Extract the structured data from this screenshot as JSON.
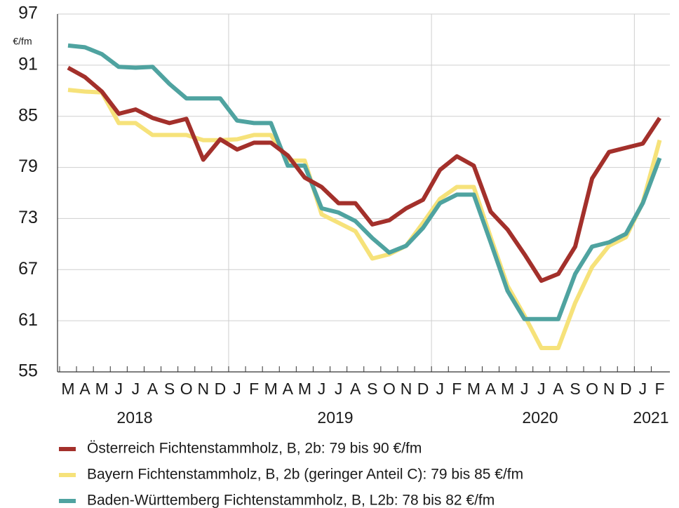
{
  "chart_data": {
    "type": "line",
    "y_unit": "€/fm",
    "categories": [
      "M",
      "A",
      "M",
      "J",
      "J",
      "A",
      "S",
      "O",
      "N",
      "D",
      "J",
      "F",
      "M",
      "A",
      "M",
      "J",
      "J",
      "A",
      "S",
      "O",
      "N",
      "D",
      "J",
      "F",
      "M",
      "A",
      "M",
      "J",
      "J",
      "A",
      "S",
      "O",
      "N",
      "D",
      "J",
      "F"
    ],
    "year_labels": [
      "2018",
      "2019",
      "2020",
      "2021"
    ],
    "ylim": [
      55,
      97
    ],
    "yticks": [
      55,
      61,
      67,
      73,
      79,
      85,
      91,
      97
    ],
    "grid": true,
    "legend": "bottom",
    "series": [
      {
        "name": "Österreich Fichtenstammholz, B, 2b: 79 bis 90 €/fm",
        "color": "#a3302b",
        "values": [
          90.7,
          89.6,
          87.9,
          85.3,
          85.8,
          84.8,
          84.2,
          84.7,
          79.9,
          82.3,
          81.1,
          81.9,
          81.9,
          80.4,
          77.8,
          76.7,
          74.8,
          74.8,
          72.3,
          72.8,
          74.2,
          75.2,
          78.7,
          80.3,
          79.2,
          73.8,
          71.7,
          68.8,
          65.7,
          66.5,
          69.7,
          77.7,
          80.8,
          81.3,
          81.8,
          84.8
        ]
      },
      {
        "name": "Bayern Fichtenstammholz, B, 2b (geringer Anteil C): 79 bis 85 €/fm",
        "color": "#f6e27a",
        "values": [
          88.1,
          87.9,
          87.8,
          84.2,
          84.2,
          82.8,
          82.8,
          82.8,
          82.2,
          82.2,
          82.3,
          82.8,
          82.8,
          79.8,
          79.8,
          73.5,
          72.5,
          71.5,
          68.3,
          68.8,
          69.8,
          72.5,
          75.3,
          76.7,
          76.7,
          70.8,
          65.1,
          61.6,
          57.8,
          57.8,
          63.1,
          67.3,
          69.8,
          70.8,
          74.9,
          82.2
        ]
      },
      {
        "name": "Baden-Württemberg Fichtenstammholz, B, L2b: 78 bis 82 €/fm",
        "color": "#4fa3a0",
        "values": [
          93.3,
          93.1,
          92.3,
          90.8,
          90.7,
          90.8,
          88.8,
          87.1,
          87.1,
          87.1,
          84.5,
          84.2,
          84.2,
          79.2,
          79.2,
          74.2,
          73.7,
          72.7,
          70.7,
          69.0,
          69.8,
          71.9,
          74.8,
          75.8,
          75.8,
          70.2,
          64.5,
          61.2,
          61.2,
          61.2,
          66.5,
          69.7,
          70.2,
          71.2,
          74.8,
          80.1
        ]
      }
    ]
  }
}
